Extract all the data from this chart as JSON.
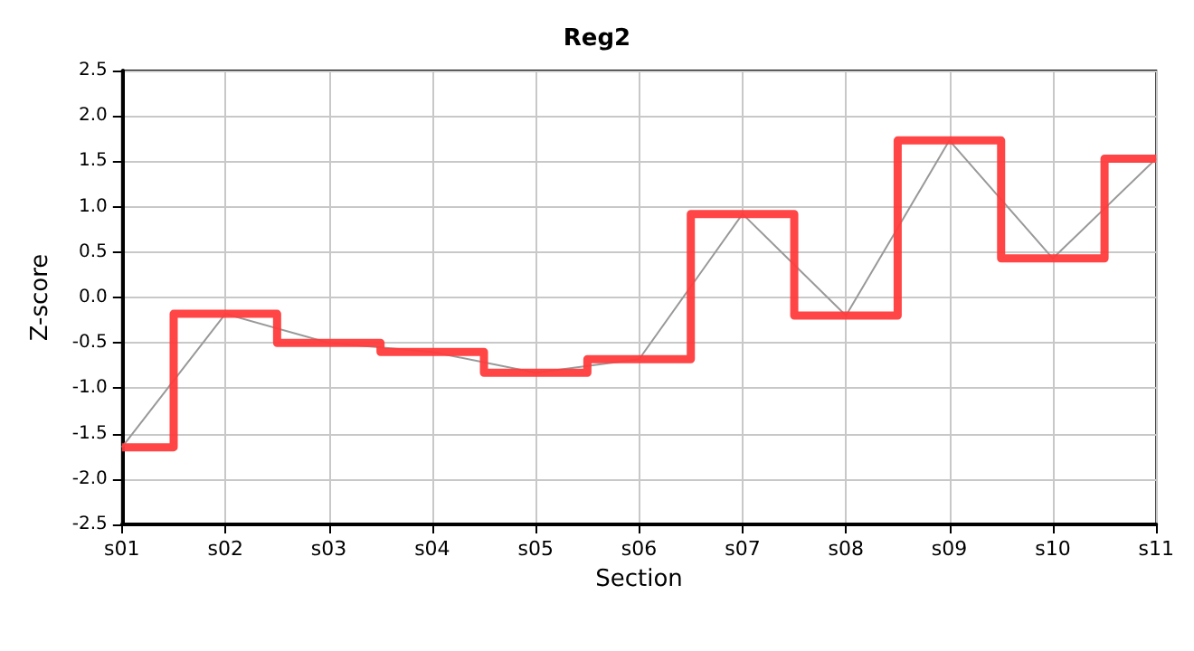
{
  "chart_data": {
    "type": "step",
    "title": "Reg2",
    "xlabel": "Section",
    "ylabel": "Z-score",
    "categories": [
      "s01",
      "s02",
      "s03",
      "s04",
      "s05",
      "s06",
      "s07",
      "s08",
      "s09",
      "s10",
      "s11"
    ],
    "series": [
      {
        "type": "line",
        "color": "#999999",
        "values": [
          -1.65,
          -0.18,
          -0.5,
          -0.6,
          -0.83,
          -0.68,
          0.92,
          -0.2,
          1.73,
          0.43,
          1.53
        ]
      },
      {
        "color": "#ff3b3b",
        "values": [
          -1.65,
          -0.18,
          -0.5,
          -0.6,
          -0.83,
          -0.68,
          0.92,
          -0.2,
          1.73,
          0.43,
          1.53
        ]
      }
    ],
    "ylim": [
      -2.5,
      2.5
    ],
    "yticks": [
      {
        "value": -2.5,
        "label": "-2.5"
      },
      {
        "value": -2,
        "label": "-2.0"
      },
      {
        "value": -1.5,
        "label": "-1.5"
      },
      {
        "value": -1,
        "label": "-1.0"
      },
      {
        "value": -0.5,
        "label": "-0.5"
      },
      {
        "value": 0,
        "label": "0.0"
      },
      {
        "value": 0.5,
        "label": "0.5"
      },
      {
        "value": 1,
        "label": "1.0"
      },
      {
        "value": 1.5,
        "label": "1.5"
      },
      {
        "value": 2,
        "label": "2.0"
      },
      {
        "value": 2.5,
        "label": "2.5"
      }
    ],
    "grid": true,
    "marker": "none",
    "line_style": "solid"
  }
}
